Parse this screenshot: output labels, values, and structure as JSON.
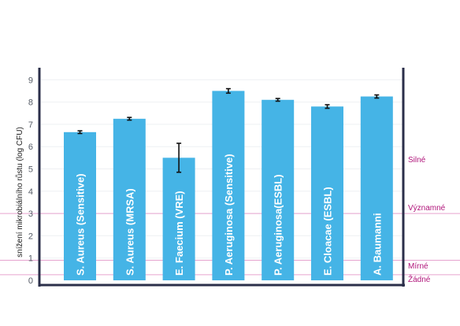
{
  "chart_data": {
    "type": "bar",
    "ylabel": "snížení mikrobiálního růstu (log CFU)",
    "ylim": [
      0,
      9
    ],
    "yticks": [
      0,
      1,
      2,
      3,
      4,
      5,
      6,
      7,
      8,
      9
    ],
    "categories": [
      "S. Aureus (Sensitive)",
      "S. Aureus (MRSA)",
      "E. Faecium (VRE)",
      "P. Aeruginosa (Sensitive)",
      "P. Aeruginosa(ESBL)",
      "E. Cloacae (ESBL)",
      "A. Baumanni"
    ],
    "values": [
      6.65,
      7.25,
      5.5,
      8.5,
      8.1,
      7.8,
      8.25
    ],
    "errors": [
      0.06,
      0.06,
      0.65,
      0.1,
      0.06,
      0.08,
      0.07
    ],
    "bar_color": "#45b4e6",
    "thresholds": [
      {
        "label": "Silné",
        "value": null
      },
      {
        "label": "Významné",
        "value": 3
      },
      {
        "label": "Mírné",
        "value": 0.9
      },
      {
        "label": "Žádné",
        "value": 0.25
      }
    ],
    "threshold_color": "#e6a3cf",
    "axis_color": "#2b2f4a"
  }
}
